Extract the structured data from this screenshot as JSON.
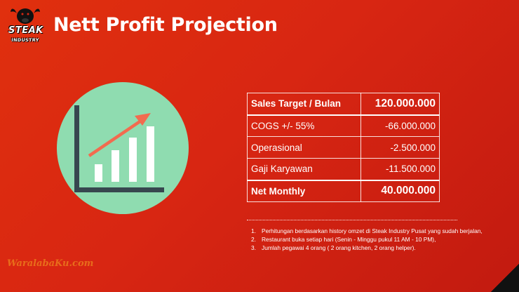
{
  "header": {
    "title": "Nett Profit Projection"
  },
  "logo": {
    "line1": "STEAK",
    "line2": "INDUSTRY"
  },
  "table": {
    "rows": [
      {
        "label": "Sales Target / Bulan",
        "value": "120.000.000"
      },
      {
        "label": "COGS +/- 55%",
        "value": "-66.000.000"
      },
      {
        "label": "Operasional",
        "value": "-2.500.000"
      },
      {
        "label": "Gaji Karyawan",
        "value": "-11.500.000"
      },
      {
        "label": "Net Monthly",
        "value": "40.000.000"
      }
    ]
  },
  "notes": [
    {
      "num": "1.",
      "text": "Perhitungan berdasarkan history omzet di Steak Industry Pusat yang sudah berjalan,"
    },
    {
      "num": "2.",
      "text": "Restaurant buka setiap hari (Senin - Minggu pukul 11 AM - 10 PM),"
    },
    {
      "num": "3.",
      "text": "Jumlah pegawai 4 orang ( 2 orang kitchen, 2 orang helper)."
    }
  ],
  "watermark": {
    "text": "WaralabaKu.com"
  },
  "icons": {
    "illustration": "growth-chart-icon",
    "logo": "steak-industry-logo"
  },
  "colors": {
    "background": "#d82612",
    "circle": "#8fdcb0",
    "axis": "#37474f",
    "arrow": "#f26b4f",
    "bars": "#ffffff"
  }
}
